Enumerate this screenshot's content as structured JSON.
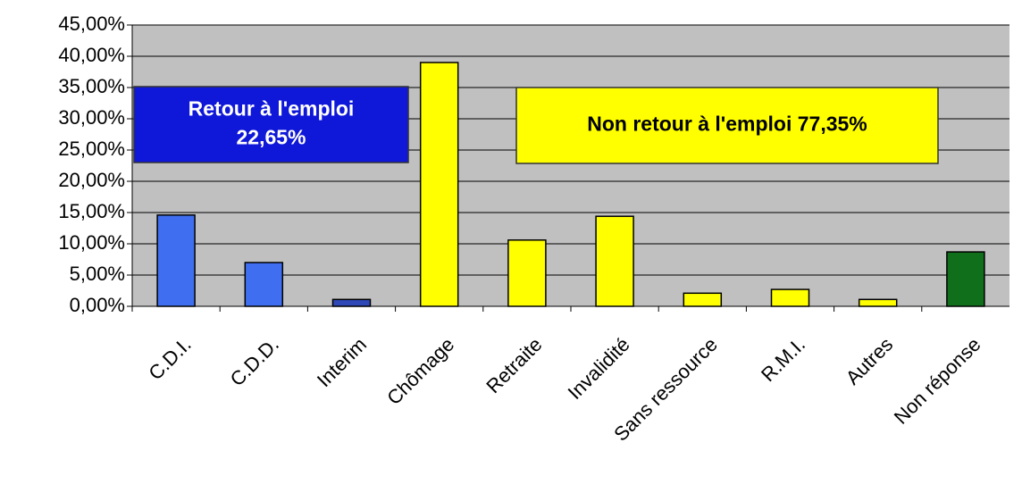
{
  "chart_data": {
    "type": "bar",
    "categories": [
      "C.D.I.",
      "C.D.D.",
      "Interim",
      "Chômage",
      "Retraite",
      "Invalidité",
      "Sans ressource",
      "R.M.I.",
      "Autres",
      "Non réponse"
    ],
    "values": [
      14.6,
      7.0,
      1.1,
      39.0,
      10.6,
      14.4,
      2.1,
      2.7,
      1.1,
      8.7
    ],
    "colors": [
      "#3f6ff0",
      "#3f6ff0",
      "#2f48b8",
      "#ffff00",
      "#ffff00",
      "#ffff00",
      "#ffff00",
      "#ffff00",
      "#ffff00",
      "#0f6f1a"
    ],
    "ylim": [
      0,
      45
    ],
    "yticks": [
      {
        "value": 0,
        "label": "0,00%"
      },
      {
        "value": 5,
        "label": "5,00%"
      },
      {
        "value": 10,
        "label": "10,00%"
      },
      {
        "value": 15,
        "label": "15,00%"
      },
      {
        "value": 20,
        "label": "20,00%"
      },
      {
        "value": 25,
        "label": "25,00%"
      },
      {
        "value": 30,
        "label": "30,00%"
      },
      {
        "value": 35,
        "label": "35,00%"
      },
      {
        "value": 40,
        "label": "40,00%"
      },
      {
        "value": 45,
        "label": "45,00%"
      }
    ],
    "grid": true,
    "annotations": [
      {
        "lines": [
          "Retour à l'emploi",
          "22,65%"
        ],
        "box_color": "#0f17d8",
        "text_color": "#ffffff"
      },
      {
        "lines": [
          "Non retour à l'emploi 77,35%"
        ],
        "box_color": "#ffff00",
        "text_color": "#000000"
      }
    ]
  }
}
